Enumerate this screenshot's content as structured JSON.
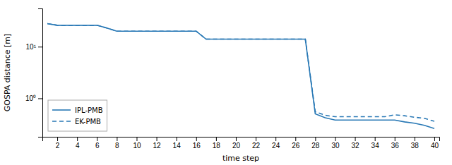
{
  "chart_data": {
    "type": "line",
    "xlabel": "time step",
    "ylabel": "GOSPA distance [m]",
    "log": "y",
    "grid": false,
    "legend": "lower left",
    "xlim": [
      0.5,
      40.5
    ],
    "xticks": [
      2,
      4,
      6,
      8,
      10,
      12,
      14,
      16,
      18,
      20,
      22,
      24,
      26,
      28,
      30,
      32,
      34,
      36,
      38,
      40
    ],
    "ylim": [
      0.18,
      55
    ],
    "yticks": [
      {
        "value": 1,
        "label": "10⁰"
      },
      {
        "value": 10,
        "label": "10¹"
      }
    ],
    "x": [
      1,
      2,
      3,
      4,
      5,
      6,
      7,
      8,
      9,
      10,
      11,
      12,
      13,
      14,
      15,
      16,
      17,
      18,
      19,
      20,
      21,
      22,
      23,
      24,
      25,
      26,
      27,
      28,
      29,
      30,
      31,
      32,
      33,
      34,
      35,
      36,
      37,
      38,
      39,
      40
    ],
    "series": [
      {
        "name": "IPL-PMB",
        "color": "#2878b5",
        "line_style": "solid",
        "values": [
          28,
          26,
          26,
          26,
          26,
          26,
          23,
          20,
          20,
          20,
          20,
          20,
          20,
          20,
          20,
          20,
          14,
          14,
          14,
          14,
          14,
          14,
          14,
          14,
          14,
          14,
          14,
          0.5,
          0.42,
          0.38,
          0.38,
          0.38,
          0.38,
          0.38,
          0.38,
          0.38,
          0.35,
          0.33,
          0.3,
          0.26
        ]
      },
      {
        "name": "EK-PMB",
        "color": "#2878b5",
        "line_style": "dashed",
        "values": [
          28,
          26,
          26,
          26,
          26,
          26,
          23,
          20,
          20,
          20,
          20,
          20,
          20,
          20,
          20,
          20,
          14,
          14,
          14,
          14,
          14,
          14,
          14,
          14,
          14,
          14,
          14,
          0.55,
          0.47,
          0.44,
          0.44,
          0.44,
          0.44,
          0.44,
          0.44,
          0.48,
          0.46,
          0.43,
          0.41,
          0.36
        ]
      }
    ]
  }
}
